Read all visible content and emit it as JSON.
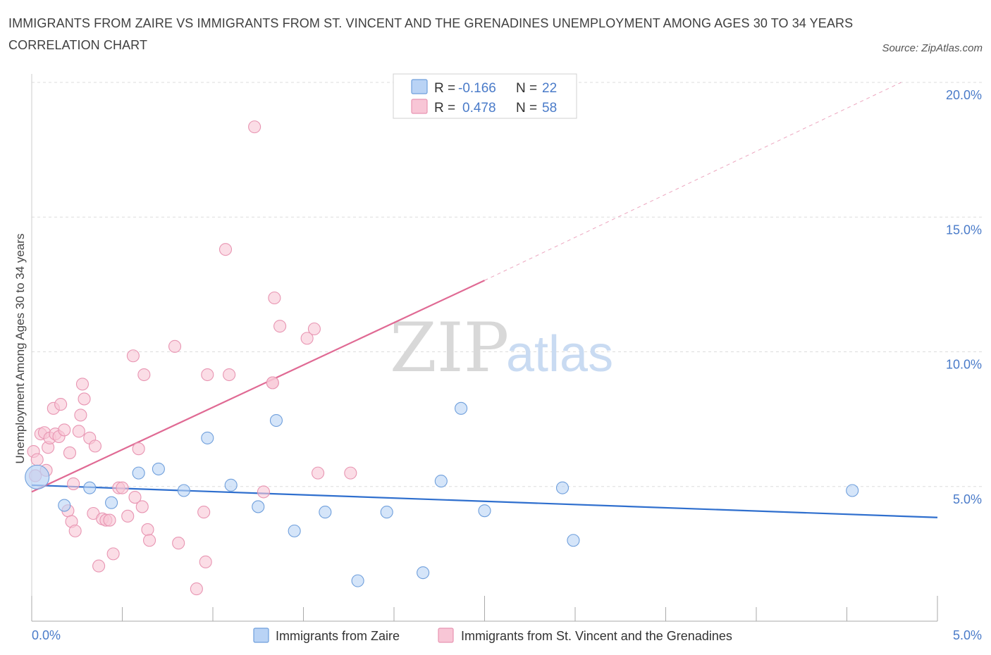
{
  "title": "IMMIGRANTS FROM ZAIRE VS IMMIGRANTS FROM ST. VINCENT AND THE GRENADINES UNEMPLOYMENT AMONG AGES 30 TO 34 YEARS CORRELATION CHART",
  "source": "Source: ZipAtlas.com",
  "watermark": {
    "zip": "ZIP",
    "atlas": "atlas"
  },
  "colors": {
    "zaire_fill": "#b9d3f5",
    "zaire_stroke": "#6f9fdc",
    "zaire_line": "#2f6fce",
    "svg_fill": "#f8c6d6",
    "svg_stroke": "#e895b2",
    "svg_line": "#e06a94",
    "grid": "#dddddd",
    "tick_label": "#4a7bc9"
  },
  "legend": {
    "rows": [
      {
        "r_label": "R =",
        "r_value": "-0.166",
        "n_label": "N =",
        "n_value": "22"
      },
      {
        "r_label": "R =",
        "r_value": "0.478",
        "n_label": "N =",
        "n_value": "58"
      }
    ]
  },
  "chart_data": {
    "type": "scatter",
    "title": "IMMIGRANTS FROM ZAIRE VS IMMIGRANTS FROM ST. VINCENT AND THE GRENADINES UNEMPLOYMENT AMONG AGES 30 TO 34 YEARS CORRELATION CHART",
    "xlabel": "",
    "ylabel": "Unemployment Among Ages 30 to 34 years",
    "xlim": [
      0,
      5
    ],
    "ylim": [
      0,
      20
    ],
    "x_tick_labels": [
      "0.0%",
      "5.0%"
    ],
    "y_ticks": [
      5,
      10,
      15,
      20
    ],
    "y_tick_labels": [
      "5.0%",
      "10.0%",
      "15.0%",
      "20.0%"
    ],
    "grid": true,
    "legend_position": "top-center",
    "series": [
      {
        "name": "Immigrants from Zaire",
        "r": -0.166,
        "n": 22,
        "trend": {
          "x": [
            0,
            5
          ],
          "y": [
            5.05,
            3.85
          ],
          "dashed_extension": false
        },
        "points": [
          {
            "x": 0.03,
            "y": 5.35,
            "big": true
          },
          {
            "x": 0.18,
            "y": 4.3
          },
          {
            "x": 0.32,
            "y": 4.95
          },
          {
            "x": 0.44,
            "y": 4.4
          },
          {
            "x": 0.59,
            "y": 5.5
          },
          {
            "x": 0.7,
            "y": 5.65
          },
          {
            "x": 0.84,
            "y": 4.85
          },
          {
            "x": 0.97,
            "y": 6.8
          },
          {
            "x": 1.1,
            "y": 5.05
          },
          {
            "x": 1.25,
            "y": 4.25
          },
          {
            "x": 1.35,
            "y": 7.45
          },
          {
            "x": 1.45,
            "y": 3.35
          },
          {
            "x": 1.62,
            "y": 4.05
          },
          {
            "x": 1.8,
            "y": 1.5
          },
          {
            "x": 1.96,
            "y": 4.05
          },
          {
            "x": 2.16,
            "y": 1.8
          },
          {
            "x": 2.26,
            "y": 5.2
          },
          {
            "x": 2.37,
            "y": 7.9
          },
          {
            "x": 2.5,
            "y": 4.1
          },
          {
            "x": 2.93,
            "y": 4.95
          },
          {
            "x": 2.99,
            "y": 3.0
          },
          {
            "x": 4.53,
            "y": 4.85
          }
        ]
      },
      {
        "name": "Immigrants from St. Vincent and the Grenadines",
        "r": 0.478,
        "n": 58,
        "trend": {
          "x": [
            0,
            2.5
          ],
          "y": [
            4.8,
            12.65
          ],
          "dashed_extension_to": {
            "x": 4.8,
            "y": 20.0
          }
        },
        "points": [
          {
            "x": 0.01,
            "y": 6.3
          },
          {
            "x": 0.02,
            "y": 5.4
          },
          {
            "x": 0.03,
            "y": 6.0
          },
          {
            "x": 0.05,
            "y": 6.95
          },
          {
            "x": 0.07,
            "y": 7.0
          },
          {
            "x": 0.08,
            "y": 5.6
          },
          {
            "x": 0.09,
            "y": 6.45
          },
          {
            "x": 0.1,
            "y": 6.8
          },
          {
            "x": 0.12,
            "y": 7.9
          },
          {
            "x": 0.13,
            "y": 6.95
          },
          {
            "x": 0.15,
            "y": 6.85
          },
          {
            "x": 0.16,
            "y": 8.05
          },
          {
            "x": 0.18,
            "y": 7.1
          },
          {
            "x": 0.2,
            "y": 4.1
          },
          {
            "x": 0.21,
            "y": 6.25
          },
          {
            "x": 0.22,
            "y": 3.7
          },
          {
            "x": 0.23,
            "y": 5.1
          },
          {
            "x": 0.24,
            "y": 3.35
          },
          {
            "x": 0.26,
            "y": 7.05
          },
          {
            "x": 0.27,
            "y": 7.65
          },
          {
            "x": 0.28,
            "y": 8.8
          },
          {
            "x": 0.29,
            "y": 8.25
          },
          {
            "x": 0.32,
            "y": 6.8
          },
          {
            "x": 0.34,
            "y": 4.0
          },
          {
            "x": 0.35,
            "y": 6.5
          },
          {
            "x": 0.37,
            "y": 2.05
          },
          {
            "x": 0.39,
            "y": 3.8
          },
          {
            "x": 0.41,
            "y": 3.75
          },
          {
            "x": 0.43,
            "y": 3.75
          },
          {
            "x": 0.45,
            "y": 2.5
          },
          {
            "x": 0.48,
            "y": 4.95
          },
          {
            "x": 0.5,
            "y": 4.95
          },
          {
            "x": 0.53,
            "y": 3.9
          },
          {
            "x": 0.56,
            "y": 9.85
          },
          {
            "x": 0.57,
            "y": 4.6
          },
          {
            "x": 0.59,
            "y": 6.4
          },
          {
            "x": 0.61,
            "y": 4.25
          },
          {
            "x": 0.62,
            "y": 9.15
          },
          {
            "x": 0.64,
            "y": 3.4
          },
          {
            "x": 0.65,
            "y": 3.0
          },
          {
            "x": 0.79,
            "y": 10.2
          },
          {
            "x": 0.81,
            "y": 2.9
          },
          {
            "x": 0.91,
            "y": 1.2
          },
          {
            "x": 0.95,
            "y": 4.05
          },
          {
            "x": 0.96,
            "y": 2.2
          },
          {
            "x": 0.97,
            "y": 9.15
          },
          {
            "x": 1.07,
            "y": 13.8
          },
          {
            "x": 1.09,
            "y": 9.15
          },
          {
            "x": 1.23,
            "y": 18.35
          },
          {
            "x": 1.28,
            "y": 4.8
          },
          {
            "x": 1.33,
            "y": 8.85
          },
          {
            "x": 1.34,
            "y": 12.0
          },
          {
            "x": 1.37,
            "y": 10.95
          },
          {
            "x": 1.52,
            "y": 10.5
          },
          {
            "x": 1.56,
            "y": 10.85
          },
          {
            "x": 1.58,
            "y": 5.5
          },
          {
            "x": 1.76,
            "y": 5.5
          },
          {
            "x": 1.33,
            "y": 8.85
          }
        ]
      }
    ]
  }
}
